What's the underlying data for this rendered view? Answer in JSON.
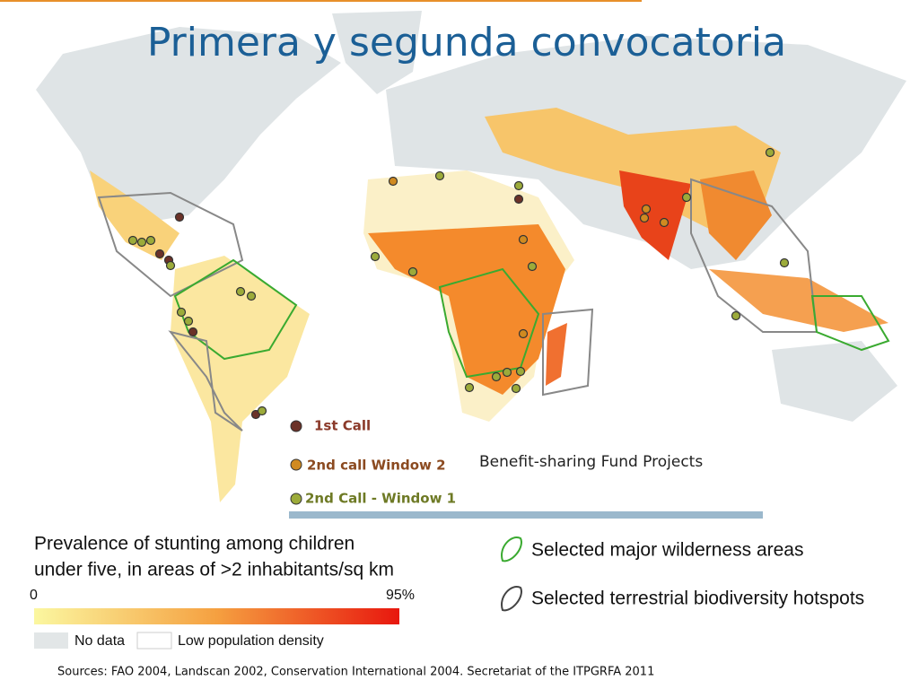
{
  "title": "Primera y segunda convocatoria",
  "calls": {
    "items": [
      "1st Call",
      "2nd call Window 2",
      "2nd Call - Window 1"
    ],
    "caption": "Benefit-sharing Fund Projects"
  },
  "stunting_legend": {
    "lines": [
      "Prevalence of stunting among children",
      "under five, in areas of >2 inhabitants/sq km"
    ],
    "scale_min": "0",
    "scale_max": "95%",
    "no_data": "No data",
    "low_density": "Low population density"
  },
  "areas_legend": [
    "Selected major wilderness areas",
    "Selected terrestrial biodiversity hotspots"
  ],
  "sources": "Sources: FAO 2004, Landscan 2002, Conservation International 2004.  Secretariat of the ITPGRFA 2011"
}
